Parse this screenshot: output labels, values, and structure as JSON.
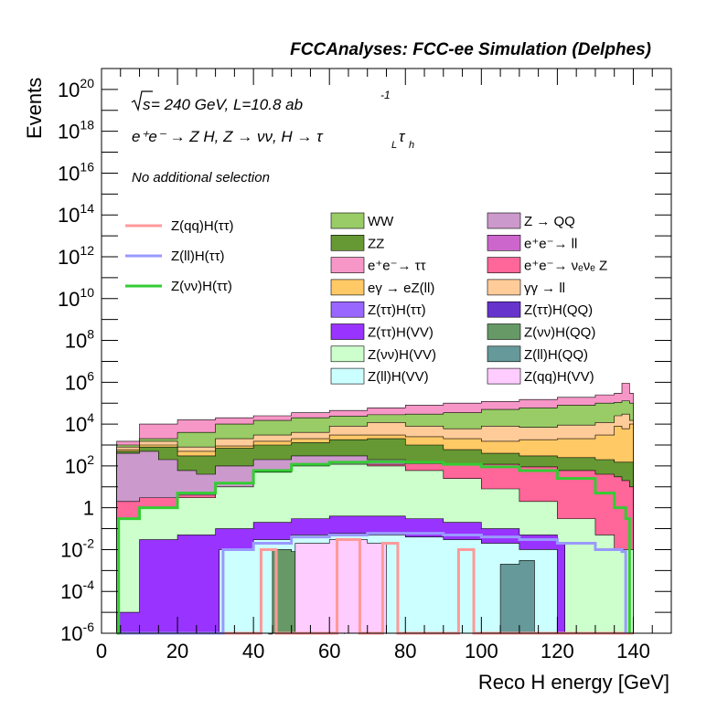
{
  "header": {
    "title": "FCCAnalyses: FCC-ee Simulation (Delphes)"
  },
  "annotations": {
    "energy_prefix": "s",
    "energy_text": " = 240 GeV, L=10.8 ab",
    "lumi_exp": "-1",
    "process": "e⁺e⁻ → Z H, Z → νν, H → τ",
    "tau1_sub": "L",
    "tau2": "τ",
    "tau2_sub": "h",
    "selection": "No additional selection"
  },
  "chart_data": {
    "type": "histogram",
    "title": "",
    "xlabel": "Reco H energy [GeV]",
    "ylabel": "Events",
    "x_range": [
      0,
      150
    ],
    "y_range": [
      1e-06,
      1e+21
    ],
    "y_scale": "log",
    "x_ticks": [
      "0",
      "20",
      "40",
      "60",
      "80",
      "100",
      "120",
      "140"
    ],
    "y_ticks": [
      {
        "base": "10",
        "exp": "20",
        "value": 1e+20
      },
      {
        "base": "10",
        "exp": "18",
        "value": 1e+18
      },
      {
        "base": "10",
        "exp": "16",
        "value": 1e+16
      },
      {
        "base": "10",
        "exp": "14",
        "value": 100000000000000.0
      },
      {
        "base": "10",
        "exp": "12",
        "value": 1000000000000.0
      },
      {
        "base": "10",
        "exp": "10",
        "value": 10000000000.0
      },
      {
        "base": "10",
        "exp": "8",
        "value": 100000000.0
      },
      {
        "base": "10",
        "exp": "6",
        "value": 1000000.0
      },
      {
        "base": "10",
        "exp": "4",
        "value": 10000.0
      },
      {
        "base": "10",
        "exp": "2",
        "value": 100.0
      },
      {
        "base": "1",
        "exp": "",
        "value": 1
      },
      {
        "base": "10",
        "exp": "-2",
        "value": 0.01
      },
      {
        "base": "10",
        "exp": "-4",
        "value": 0.0001
      },
      {
        "base": "10",
        "exp": "-6",
        "value": 1e-06
      }
    ],
    "grid": false,
    "legend_placement": "inside upper area",
    "stack_layers": [
      {
        "name": "e⁺e⁻→ ττ",
        "color": "#f797c7",
        "points": [
          [
            4,
            1500.0
          ],
          [
            10,
            10000.0
          ],
          [
            20,
            16000.0
          ],
          [
            30,
            20000.0
          ],
          [
            40,
            25000.0
          ],
          [
            50,
            35000.0
          ],
          [
            60,
            45000.0
          ],
          [
            70,
            60000.0
          ],
          [
            80,
            80000.0
          ],
          [
            90,
            100000.0
          ],
          [
            100,
            120000.0
          ],
          [
            110,
            150000.0
          ],
          [
            120,
            190000.0
          ],
          [
            130,
            250000.0
          ],
          [
            135,
            300000.0
          ],
          [
            137,
            900000.0
          ],
          [
            139,
            300000.0
          ],
          [
            140,
            1e-09
          ]
        ]
      },
      {
        "name": "WW",
        "color": "#99cc66",
        "points": [
          [
            4,
            1000.0
          ],
          [
            10,
            2000.0
          ],
          [
            20,
            4000.0
          ],
          [
            30,
            10000.0
          ],
          [
            40,
            15000.0
          ],
          [
            50,
            20000.0
          ],
          [
            60,
            24000.0
          ],
          [
            70,
            28000.0
          ],
          [
            80,
            30000.0
          ],
          [
            90,
            35000.0
          ],
          [
            100,
            50000.0
          ],
          [
            110,
            60000.0
          ],
          [
            120,
            80000.0
          ],
          [
            130,
            100000.0
          ],
          [
            135,
            110000.0
          ],
          [
            137,
            130000.0
          ],
          [
            139,
            100000.0
          ],
          [
            140,
            1e-09
          ]
        ]
      },
      {
        "name": "γγ → ll",
        "color": "#ffcc99",
        "points": [
          [
            4,
            800.0
          ],
          [
            10,
            1500.0
          ],
          [
            20,
            800.0
          ],
          [
            30,
            2000.0
          ],
          [
            40,
            3000.0
          ],
          [
            50,
            4000.0
          ],
          [
            60,
            8000.0
          ],
          [
            70,
            12000.0
          ],
          [
            80,
            8000.0
          ],
          [
            90,
            6000.0
          ],
          [
            100,
            8000.0
          ],
          [
            110,
            7000.0
          ],
          [
            120,
            9000.0
          ],
          [
            130,
            12000.0
          ],
          [
            135,
            25000.0
          ],
          [
            137,
            30000.0
          ],
          [
            139,
            15000.0
          ],
          [
            140,
            1e-09
          ]
        ]
      },
      {
        "name": "eγ → eZ(ll)",
        "color": "#ffc966",
        "points": [
          [
            4,
            600.0
          ],
          [
            10,
            1000.0
          ],
          [
            20,
            500.0
          ],
          [
            30,
            900.0
          ],
          [
            40,
            1500.0
          ],
          [
            50,
            2000.0
          ],
          [
            60,
            3000.0
          ],
          [
            70,
            3000.0
          ],
          [
            80,
            2500.0
          ],
          [
            90,
            2000.0
          ],
          [
            100,
            1500.0
          ],
          [
            110,
            1800.0
          ],
          [
            120,
            2000.0
          ],
          [
            130,
            3000.0
          ],
          [
            135,
            8000.0
          ],
          [
            137,
            6000.0
          ],
          [
            139,
            10000.0
          ],
          [
            140,
            1e-09
          ]
        ]
      },
      {
        "name": "ZZ",
        "color": "#669933",
        "points": [
          [
            4,
            500.0
          ],
          [
            10,
            800.0
          ],
          [
            20,
            300.0
          ],
          [
            30,
            700.0
          ],
          [
            40,
            1000.0
          ],
          [
            50,
            1300.0
          ],
          [
            60,
            1800.0
          ],
          [
            70,
            2000.0
          ],
          [
            80,
            1000.0
          ],
          [
            90,
            600.0
          ],
          [
            100,
            400.0
          ],
          [
            110,
            300.0
          ],
          [
            120,
            250.0
          ],
          [
            130,
            200.0
          ],
          [
            135,
            150.0
          ],
          [
            140,
            1e-09
          ]
        ]
      },
      {
        "name": "Z → QQ",
        "color": "#cc99cc",
        "points": [
          [
            4,
            400.0
          ],
          [
            10,
            500.0
          ],
          [
            15,
            200.0
          ],
          [
            20,
            60
          ],
          [
            25,
            40
          ],
          [
            30,
            100.0
          ],
          [
            40,
            200.0
          ],
          [
            50,
            300.0
          ],
          [
            60,
            300.0
          ],
          [
            70,
            200.0
          ],
          [
            80,
            120.0
          ],
          [
            90,
            80
          ],
          [
            100,
            50
          ],
          [
            110,
            30
          ],
          [
            120,
            10
          ],
          [
            130,
            5
          ],
          [
            140,
            1e-09
          ]
        ]
      },
      {
        "name": "e⁺e⁻→ νₑνₑ Z",
        "color": "#ff6699",
        "points": [
          [
            4,
            2
          ],
          [
            10,
            3
          ],
          [
            20,
            4
          ],
          [
            30,
            8
          ],
          [
            40,
            20
          ],
          [
            50,
            60
          ],
          [
            60,
            100.0
          ],
          [
            70,
            120.0
          ],
          [
            80,
            130.0
          ],
          [
            90,
            120.0
          ],
          [
            100,
            120.0
          ],
          [
            110,
            90
          ],
          [
            120,
            60
          ],
          [
            130,
            40
          ],
          [
            135,
            30
          ],
          [
            137,
            20
          ],
          [
            139,
            10
          ],
          [
            140,
            1e-09
          ]
        ]
      },
      {
        "name": "Z(νν)H(VV)",
        "color": "#ccffcc",
        "points": [
          [
            4,
            0.3
          ],
          [
            10,
            1
          ],
          [
            20,
            3
          ],
          [
            30,
            10
          ],
          [
            40,
            50
          ],
          [
            50,
            100.0
          ],
          [
            60,
            120.0
          ],
          [
            70,
            100.0
          ],
          [
            80,
            60
          ],
          [
            90,
            25
          ],
          [
            100,
            8
          ],
          [
            110,
            2
          ],
          [
            120,
            0.3
          ],
          [
            130,
            0.05
          ],
          [
            135,
            0.01
          ],
          [
            140,
            1e-09
          ]
        ]
      },
      {
        "name": "Z(ττ)H(VV)",
        "color": "#9933ff",
        "points": [
          [
            4,
            1e-05
          ],
          [
            8,
            1e-05
          ],
          [
            10,
            0.03
          ],
          [
            20,
            0.05
          ],
          [
            30,
            0.1
          ],
          [
            40,
            0.2
          ],
          [
            50,
            0.3
          ],
          [
            60,
            0.4
          ],
          [
            70,
            0.4
          ],
          [
            80,
            0.3
          ],
          [
            90,
            0.2
          ],
          [
            100,
            0.1
          ],
          [
            110,
            0.05
          ],
          [
            120,
            0.02
          ],
          [
            122,
            1e-09
          ]
        ]
      },
      {
        "name": "Z(ll)H(VV)",
        "color": "#ccffff",
        "points": [
          [
            30,
            1e-09
          ],
          [
            31,
            0.01
          ],
          [
            40,
            0.03
          ],
          [
            50,
            0.05
          ],
          [
            60,
            0.06
          ],
          [
            70,
            0.05
          ],
          [
            80,
            0.04
          ],
          [
            90,
            0.03
          ],
          [
            100,
            0.02
          ],
          [
            110,
            0.01
          ],
          [
            120,
            1e-09
          ]
        ]
      },
      {
        "name": "Z(νν)H(QQ)",
        "color": "#669966",
        "points": [
          [
            44,
            1e-09
          ],
          [
            45,
            0.01
          ],
          [
            50,
            0.008
          ],
          [
            60,
            0.005
          ],
          [
            64,
            1e-09
          ]
        ]
      },
      {
        "name": "Z(ll)H(QQ)",
        "color": "#669999",
        "points": [
          [
            104,
            1e-09
          ],
          [
            105,
            0.002
          ],
          [
            110,
            0.003
          ],
          [
            114,
            1e-09
          ]
        ]
      },
      {
        "name": "Z(qq)H(VV)",
        "color": "#ffccff",
        "points": [
          [
            50,
            1e-09
          ],
          [
            51,
            0.02
          ],
          [
            60,
            0.03
          ],
          [
            70,
            0.02
          ],
          [
            75,
            1e-09
          ]
        ]
      }
    ],
    "overlay_lines": [
      {
        "name": "Z(qq)H(ττ)",
        "color": "#ff9999",
        "points": [
          [
            4,
            1e-06
          ],
          [
            40,
            1e-06
          ],
          [
            42,
            0.01
          ],
          [
            44,
            0.01
          ],
          [
            46,
            1e-06
          ],
          [
            60,
            1e-06
          ],
          [
            62,
            0.03
          ],
          [
            66,
            0.03
          ],
          [
            68,
            1e-06
          ],
          [
            72,
            1e-06
          ],
          [
            74,
            0.02
          ],
          [
            76,
            0.02
          ],
          [
            78,
            1e-06
          ],
          [
            92,
            1e-06
          ],
          [
            94,
            0.01
          ],
          [
            96,
            0.01
          ],
          [
            98,
            1e-06
          ],
          [
            140,
            1e-06
          ]
        ]
      },
      {
        "name": "Z(ll)H(ττ)",
        "color": "#9999ff",
        "points": [
          [
            4,
            1e-06
          ],
          [
            30,
            1e-06
          ],
          [
            32,
            0.01
          ],
          [
            40,
            0.02
          ],
          [
            50,
            0.04
          ],
          [
            60,
            0.05
          ],
          [
            70,
            0.06
          ],
          [
            80,
            0.06
          ],
          [
            90,
            0.05
          ],
          [
            100,
            0.04
          ],
          [
            110,
            0.03
          ],
          [
            120,
            0.02
          ],
          [
            130,
            0.01
          ],
          [
            137,
            0.008
          ],
          [
            138,
            1e-06
          ]
        ]
      },
      {
        "name": "Z(νν)H(ττ)",
        "color": "#33cc33",
        "points": [
          [
            4,
            1e-06
          ],
          [
            4.5,
            0.3
          ],
          [
            10,
            1
          ],
          [
            20,
            5
          ],
          [
            30,
            15
          ],
          [
            40,
            60
          ],
          [
            50,
            120.0
          ],
          [
            60,
            150.0
          ],
          [
            70,
            160.0
          ],
          [
            80,
            150.0
          ],
          [
            90,
            120.0
          ],
          [
            100,
            90
          ],
          [
            110,
            60
          ],
          [
            120,
            25
          ],
          [
            130,
            5
          ],
          [
            135,
            1
          ],
          [
            138,
            0.3
          ],
          [
            139,
            1e-06
          ]
        ]
      }
    ],
    "legend": {
      "lines": [
        {
          "label": "Z(qq)H(ττ)",
          "color": "#ff9999"
        },
        {
          "label": "Z(ll)H(ττ)",
          "color": "#9999ff"
        },
        {
          "label": "Z(νν)H(ττ)",
          "color": "#33cc33"
        }
      ],
      "col1": [
        {
          "label": "WW",
          "color": "#99cc66"
        },
        {
          "label": "ZZ",
          "color": "#669933"
        },
        {
          "label": "e⁺e⁻→ ττ",
          "color": "#f797c7"
        },
        {
          "label": "eγ → eZ(ll)",
          "color": "#ffc966"
        },
        {
          "label": "Z(ττ)H(ττ)",
          "color": "#9966ff"
        },
        {
          "label": "Z(ττ)H(VV)",
          "color": "#9933ff"
        },
        {
          "label": "Z(νν)H(VV)",
          "color": "#ccffcc"
        },
        {
          "label": "Z(ll)H(VV)",
          "color": "#ccffff"
        }
      ],
      "col2": [
        {
          "label": "Z → QQ",
          "color": "#cc99cc"
        },
        {
          "label": "e⁺e⁻→ ll",
          "color": "#cc66cc"
        },
        {
          "label": "e⁺e⁻→ νₑνₑ Z",
          "color": "#ff6699"
        },
        {
          "label": "γγ → ll",
          "color": "#ffcc99"
        },
        {
          "label": "Z(ττ)H(QQ)",
          "color": "#6633cc"
        },
        {
          "label": "Z(νν)H(QQ)",
          "color": "#669966"
        },
        {
          "label": "Z(ll)H(QQ)",
          "color": "#669999"
        },
        {
          "label": "Z(qq)H(VV)",
          "color": "#ffccff"
        }
      ]
    }
  }
}
